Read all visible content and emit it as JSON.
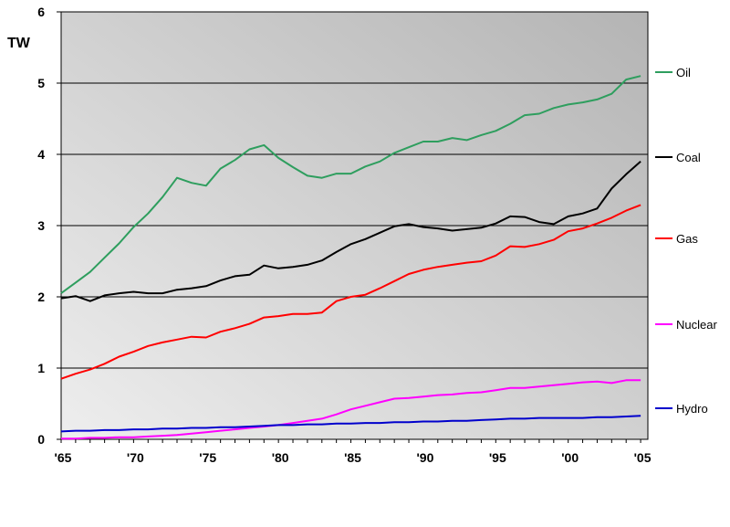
{
  "chart_data": {
    "type": "line",
    "title": "",
    "ylabel": "TW",
    "xlabel": "",
    "ylim": [
      0,
      6
    ],
    "xlim": [
      1965,
      2005.5
    ],
    "y_ticks": [
      0,
      1,
      2,
      3,
      4,
      5,
      6
    ],
    "x_ticks": [
      {
        "year": 1965,
        "label": "'65"
      },
      {
        "year": 1970,
        "label": "'70"
      },
      {
        "year": 1975,
        "label": "'75"
      },
      {
        "year": 1980,
        "label": "'80"
      },
      {
        "year": 1985,
        "label": "'85"
      },
      {
        "year": 1990,
        "label": "'90"
      },
      {
        "year": 1995,
        "label": "'95"
      },
      {
        "year": 2000,
        "label": "'00"
      },
      {
        "year": 2005,
        "label": "'05"
      }
    ],
    "grid": true,
    "legend_position": "right",
    "x": [
      1965,
      1966,
      1967,
      1968,
      1969,
      1970,
      1971,
      1972,
      1973,
      1974,
      1975,
      1976,
      1977,
      1978,
      1979,
      1980,
      1981,
      1982,
      1983,
      1984,
      1985,
      1986,
      1987,
      1988,
      1989,
      1990,
      1991,
      1992,
      1993,
      1994,
      1995,
      1996,
      1997,
      1998,
      1999,
      2000,
      2001,
      2002,
      2003,
      2004,
      2005
    ],
    "series": [
      {
        "name": "Oil",
        "color": "#2e9e5e",
        "values": [
          2.05,
          2.2,
          2.35,
          2.55,
          2.75,
          2.98,
          3.17,
          3.4,
          3.67,
          3.6,
          3.56,
          3.8,
          3.92,
          4.07,
          4.13,
          3.95,
          3.82,
          3.7,
          3.67,
          3.73,
          3.73,
          3.83,
          3.9,
          4.02,
          4.1,
          4.18,
          4.18,
          4.23,
          4.2,
          4.27,
          4.33,
          4.43,
          4.55,
          4.57,
          4.65,
          4.7,
          4.73,
          4.77,
          4.85,
          5.05,
          5.1
        ]
      },
      {
        "name": "Coal",
        "color": "#000000",
        "values": [
          1.98,
          2.01,
          1.94,
          2.02,
          2.05,
          2.07,
          2.05,
          2.05,
          2.1,
          2.12,
          2.15,
          2.23,
          2.29,
          2.31,
          2.44,
          2.4,
          2.42,
          2.45,
          2.51,
          2.63,
          2.74,
          2.81,
          2.9,
          2.99,
          3.02,
          2.98,
          2.96,
          2.93,
          2.95,
          2.97,
          3.03,
          3.13,
          3.12,
          3.05,
          3.02,
          3.13,
          3.17,
          3.24,
          3.52,
          3.72,
          3.9
        ]
      },
      {
        "name": "Gas",
        "color": "#ff0000",
        "values": [
          0.85,
          0.92,
          0.98,
          1.06,
          1.16,
          1.23,
          1.31,
          1.36,
          1.4,
          1.44,
          1.43,
          1.51,
          1.56,
          1.62,
          1.71,
          1.73,
          1.76,
          1.76,
          1.78,
          1.94,
          2.0,
          2.03,
          2.12,
          2.22,
          2.32,
          2.38,
          2.42,
          2.45,
          2.48,
          2.5,
          2.58,
          2.71,
          2.7,
          2.74,
          2.8,
          2.92,
          2.96,
          3.03,
          3.11,
          3.21,
          3.29
        ]
      },
      {
        "name": "Nuclear",
        "color": "#ff00ff",
        "values": [
          0.01,
          0.01,
          0.02,
          0.02,
          0.03,
          0.03,
          0.04,
          0.05,
          0.06,
          0.08,
          0.1,
          0.12,
          0.14,
          0.16,
          0.18,
          0.2,
          0.23,
          0.26,
          0.29,
          0.35,
          0.42,
          0.47,
          0.52,
          0.57,
          0.58,
          0.6,
          0.62,
          0.63,
          0.65,
          0.66,
          0.69,
          0.72,
          0.72,
          0.74,
          0.76,
          0.78,
          0.8,
          0.81,
          0.79,
          0.83,
          0.83
        ]
      },
      {
        "name": "Hydro",
        "color": "#0000cc",
        "values": [
          0.11,
          0.12,
          0.12,
          0.13,
          0.13,
          0.14,
          0.14,
          0.15,
          0.15,
          0.16,
          0.16,
          0.17,
          0.17,
          0.18,
          0.19,
          0.2,
          0.2,
          0.21,
          0.21,
          0.22,
          0.22,
          0.23,
          0.23,
          0.24,
          0.24,
          0.25,
          0.25,
          0.26,
          0.26,
          0.27,
          0.28,
          0.29,
          0.29,
          0.3,
          0.3,
          0.3,
          0.3,
          0.31,
          0.31,
          0.32,
          0.33
        ]
      }
    ]
  }
}
